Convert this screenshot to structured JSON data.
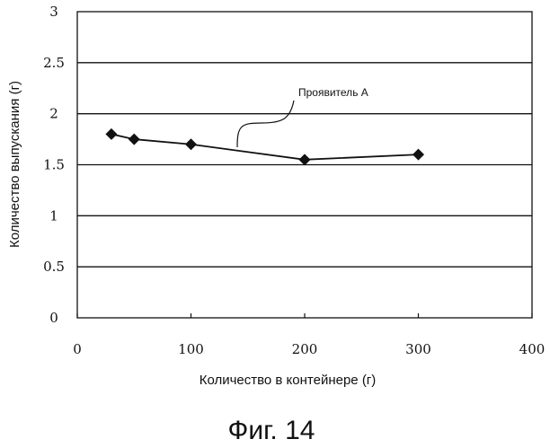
{
  "chart_data": {
    "type": "line",
    "xlabel": "Количество в контейнере (г)",
    "ylabel": "Количество выпускания (г)",
    "xlim": [
      0,
      400
    ],
    "ylim": [
      0,
      3
    ],
    "xticks": [
      "0",
      "100",
      "200",
      "300",
      "400"
    ],
    "yticks": [
      "0",
      "0.5",
      "1",
      "1.5",
      "2",
      "2.5",
      "3"
    ],
    "grid": "horizontal",
    "marker": "diamond",
    "series": [
      {
        "name": "Проявитель А",
        "x": [
          30,
          50,
          100,
          200,
          300
        ],
        "y": [
          1.8,
          1.75,
          1.7,
          1.55,
          1.6
        ]
      }
    ],
    "annotation": "Проявитель А"
  },
  "caption": "Фиг. 14"
}
